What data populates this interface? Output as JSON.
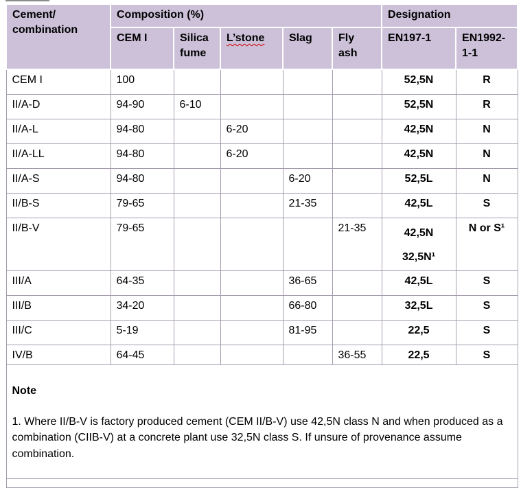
{
  "colors": {
    "header_bg": "#ccc1d9",
    "header_border": "#ffffff",
    "grid_border": "#a49cae",
    "text": "#000000",
    "spellcheck": "#d00000"
  },
  "table": {
    "header": {
      "cement_combination": "Cement/\ncombination",
      "composition": "Composition (%)",
      "designation": "Designation",
      "subheaders": [
        "CEM I",
        "Silica\nfume",
        "L’stone",
        "Slag",
        "Fly\nash",
        "EN197-1",
        "EN1992-\n1-1"
      ]
    },
    "rows": [
      [
        "CEM I",
        "100",
        "",
        "",
        "",
        "",
        "52,5N",
        "R"
      ],
      [
        "II/A-D",
        "94-90",
        "6-10",
        "",
        "",
        "",
        "52,5N",
        "R"
      ],
      [
        "II/A-L",
        "94-80",
        "",
        "6-20",
        "",
        "",
        "42,5N",
        "N"
      ],
      [
        "II/A-LL",
        "94-80",
        "",
        "6-20",
        "",
        "",
        "42,5N",
        "N"
      ],
      [
        "II/A-S",
        "94-80",
        "",
        "",
        "6-20",
        "",
        "52,5L",
        "N"
      ],
      [
        "II/B-S",
        "79-65",
        "",
        "",
        "21-35",
        "",
        "42,5L",
        "S"
      ],
      [
        "II/B-V",
        "79-65",
        "",
        "",
        "",
        "21-35",
        "42,5N\n32,5N¹",
        "N or S¹"
      ],
      [
        "III/A",
        "64-35",
        "",
        "",
        "36-65",
        "",
        "42,5L",
        "S"
      ],
      [
        "III/B",
        "34-20",
        "",
        "",
        "66-80",
        "",
        "32,5L",
        "S"
      ],
      [
        "III/C",
        "5-19",
        "",
        "",
        "81-95",
        "",
        "22,5",
        "S"
      ],
      [
        "IV/B",
        "64-45",
        "",
        "",
        "",
        "36-55",
        "22,5",
        "S"
      ]
    ],
    "note": {
      "title": "Note",
      "body": "1. Where II/B-V is factory produced cement (CEM II/B-V) use 42,5N class N and when produced as a combination (CIIB-V) at a concrete plant use 32,5N class S.  If unsure of provenance assume combination."
    }
  }
}
